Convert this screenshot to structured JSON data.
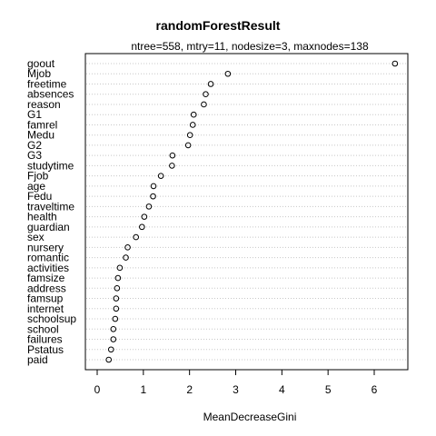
{
  "chart_data": {
    "type": "scatter",
    "title": "randomForestResult",
    "subtitle": "ntree=558, mtry=11, nodesize=3, maxnodes=138",
    "xlabel": "MeanDecreaseGini",
    "ylabel": "",
    "xlim": [
      -0.25,
      6.7
    ],
    "x_ticks": [
      0,
      1,
      2,
      3,
      4,
      5,
      6
    ],
    "grid": "dotted horizontal lines per variable",
    "legend": "none",
    "point_color": "#000000",
    "categories": [
      "goout",
      "Mjob",
      "freetime",
      "absences",
      "reason",
      "G1",
      "famrel",
      "Medu",
      "G2",
      "G3",
      "studytime",
      "Fjob",
      "age",
      "Fedu",
      "traveltime",
      "health",
      "guardian",
      "sex",
      "nursery",
      "romantic",
      "activities",
      "famsize",
      "address",
      "famsup",
      "internet",
      "schoolsup",
      "school",
      "failures",
      "Pstatus",
      "paid"
    ],
    "values": [
      6.45,
      2.83,
      2.46,
      2.35,
      2.31,
      2.09,
      2.07,
      2.01,
      1.97,
      1.63,
      1.62,
      1.38,
      1.22,
      1.21,
      1.12,
      1.02,
      0.97,
      0.84,
      0.66,
      0.62,
      0.49,
      0.45,
      0.43,
      0.41,
      0.41,
      0.39,
      0.35,
      0.35,
      0.3,
      0.25
    ]
  }
}
